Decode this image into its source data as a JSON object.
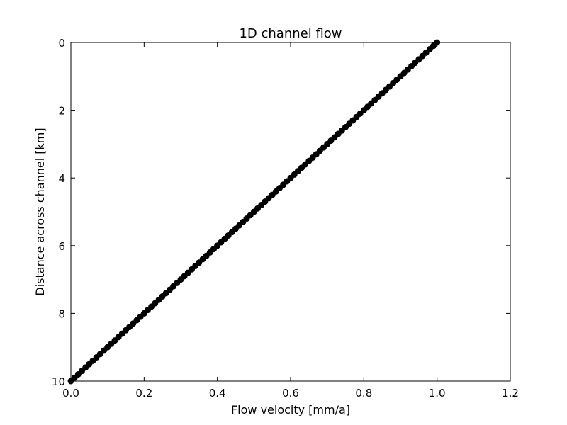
{
  "chart_data": {
    "type": "line",
    "title": "1D channel flow",
    "xlabel": "Flow velocity [mm/a]",
    "ylabel": "Distance across channel [km]",
    "xlim": [
      0.0,
      1.2
    ],
    "ylim": [
      0,
      10
    ],
    "y_inverted": true,
    "grid": false,
    "legend": "none",
    "x_tick_labels": [
      "0.0",
      "0.2",
      "0.4",
      "0.6",
      "0.8",
      "1.0",
      "1.2"
    ],
    "y_tick_labels": [
      "0",
      "2",
      "4",
      "6",
      "8",
      "10"
    ],
    "series": [
      {
        "color": "#000000",
        "marker": "circle",
        "sample_count": 101,
        "x_range": [
          0.0,
          1.0
        ],
        "y_range": [
          10,
          0
        ],
        "relation": "linear: flow velocity = 1 - distance/10"
      }
    ]
  }
}
